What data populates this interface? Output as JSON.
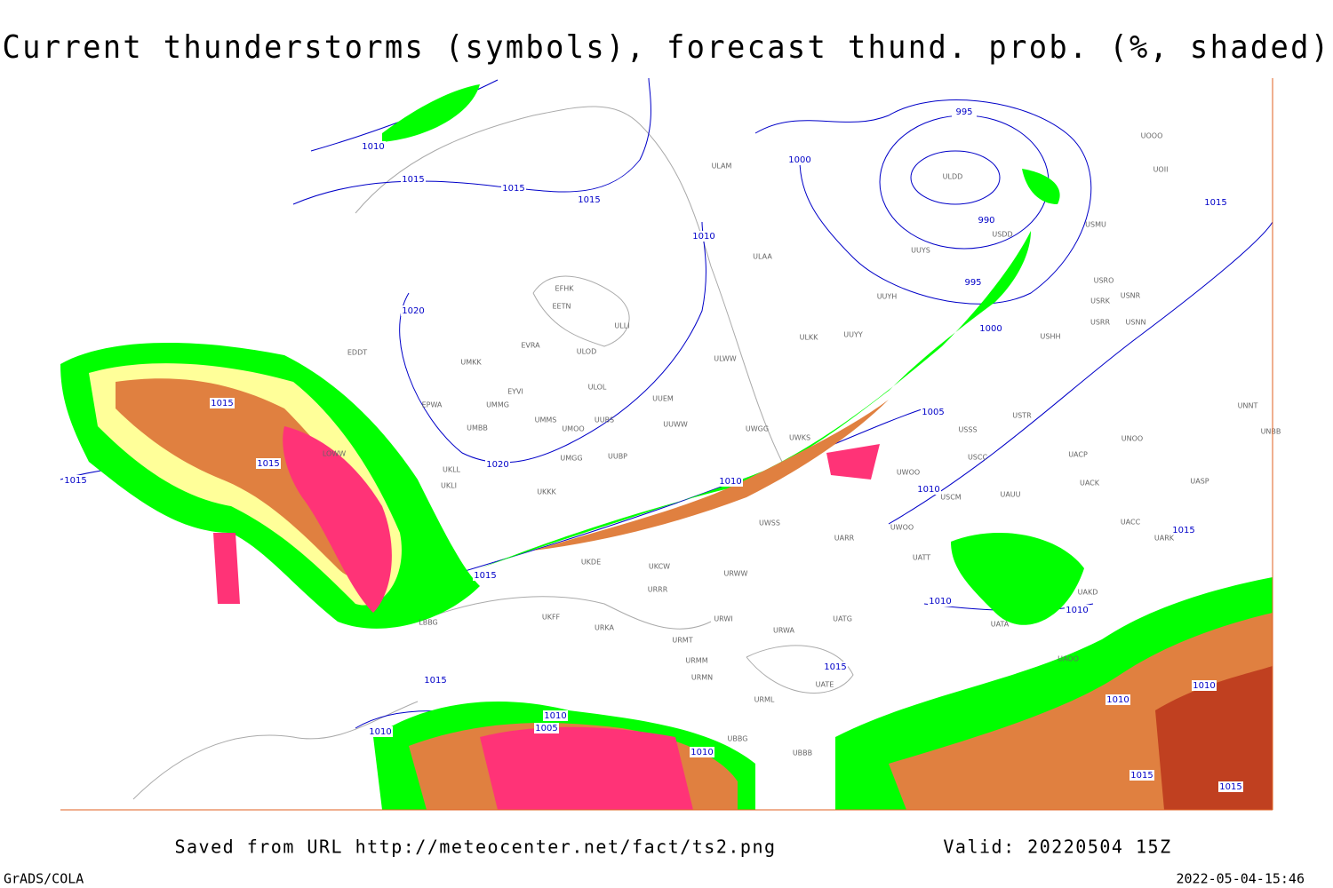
{
  "title": "Current thunderstorms (symbols), forecast thund. prob. (%, shaded)",
  "saved_from": "Saved from URL http://meteocenter.net/fact/ts2.png",
  "valid": "Valid: 20220504 15Z",
  "credit": "GrADS/COLA",
  "timestamp": "2022-05-04-15:46",
  "isobar_labels": [
    "1010",
    "1015",
    "1015",
    "1015",
    "1010",
    "1000",
    "995",
    "990",
    "995",
    "1000",
    "1015",
    "1020",
    "1015",
    "1015",
    "1015",
    "1020",
    "1010",
    "1005",
    "1010",
    "1015",
    "1015",
    "1010",
    "1010",
    "1015",
    "1015",
    "1010",
    "1005",
    "1010",
    "1010",
    "1010",
    "1010",
    "1015",
    "1015"
  ],
  "stations": [
    "EDDT",
    "UMKK",
    "EFHK",
    "EETN",
    "EVRA",
    "ULOD",
    "ULOL",
    "ULLI",
    "EYVI",
    "EPWA",
    "UMMG",
    "UMMS",
    "UMOO",
    "UUBS",
    "UMBB",
    "UUEM",
    "UUWW",
    "UMGG",
    "UUBP",
    "UKLL",
    "UKLI",
    "UKKK",
    "ULAM",
    "ULAA",
    "ULKK",
    "UUYY",
    "ULWW",
    "UWGG",
    "UWKS",
    "ULDD",
    "UUYS",
    "UUYH",
    "USDD",
    "USMU",
    "UOOO",
    "UOII",
    "USRO",
    "USRK",
    "USNR",
    "USRR",
    "USNN",
    "USHH",
    "USSS",
    "USTR",
    "UNOO",
    "UACP",
    "USCC",
    "UACK",
    "UASP",
    "USCM",
    "UAUU",
    "UWOO",
    "UNNT",
    "UNBB",
    "UACC",
    "UARK",
    "UWSS",
    "UARR",
    "UWOO",
    "UATT",
    "URWW",
    "UKDE",
    "UKCW",
    "URRR",
    "UKFF",
    "URKA",
    "URWI",
    "URMT",
    "UATG",
    "URWA",
    "URMM",
    "URMN",
    "UATE",
    "URML",
    "UBBB",
    "UBBG",
    "UAKD",
    "UATA",
    "UAOO",
    "LBBG",
    "LOWW"
  ]
}
